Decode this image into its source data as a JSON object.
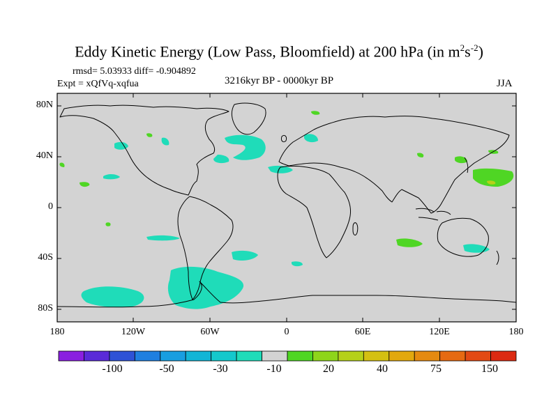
{
  "title": {
    "main": "Eddy Kinetic Energy (Low Pass, Bloomfield) at 200 hPa (in m",
    "exp1": "2",
    "mid": "s",
    "exp2": "-2",
    "close": ")"
  },
  "stats": {
    "rmsd_diff": "rmsd= 5.03933 diff= -0.904892",
    "expt": "Expt = xQfVq-xqfua",
    "period": "3216kyr BP - 0000kyr BP",
    "season": "JJA"
  },
  "axes": {
    "y_labels": [
      "80N",
      "40N",
      "0",
      "40S",
      "80S"
    ],
    "x_labels": [
      "180",
      "120W",
      "60W",
      "0",
      "60E",
      "120E",
      "180"
    ]
  },
  "colorbar": {
    "colors": [
      "#8a1fe0",
      "#5a2ad8",
      "#2e52d6",
      "#1f7fe0",
      "#189ee0",
      "#12b5d6",
      "#14c8cc",
      "#1fdcb9",
      "#d3d3d3",
      "#4fd624",
      "#8ed51a",
      "#b5d11a",
      "#d4c012",
      "#e2a80e",
      "#e58a10",
      "#e66a12",
      "#e24a14",
      "#dc2a12"
    ],
    "labels": [
      "-100",
      "-50",
      "-30",
      "-10",
      "20",
      "40",
      "75",
      "150"
    ]
  },
  "colors": {
    "background": "#d3d3d3",
    "negative": "#1fdcb9",
    "positive": "#4fd624",
    "positive_high": "#b5d11a"
  }
}
